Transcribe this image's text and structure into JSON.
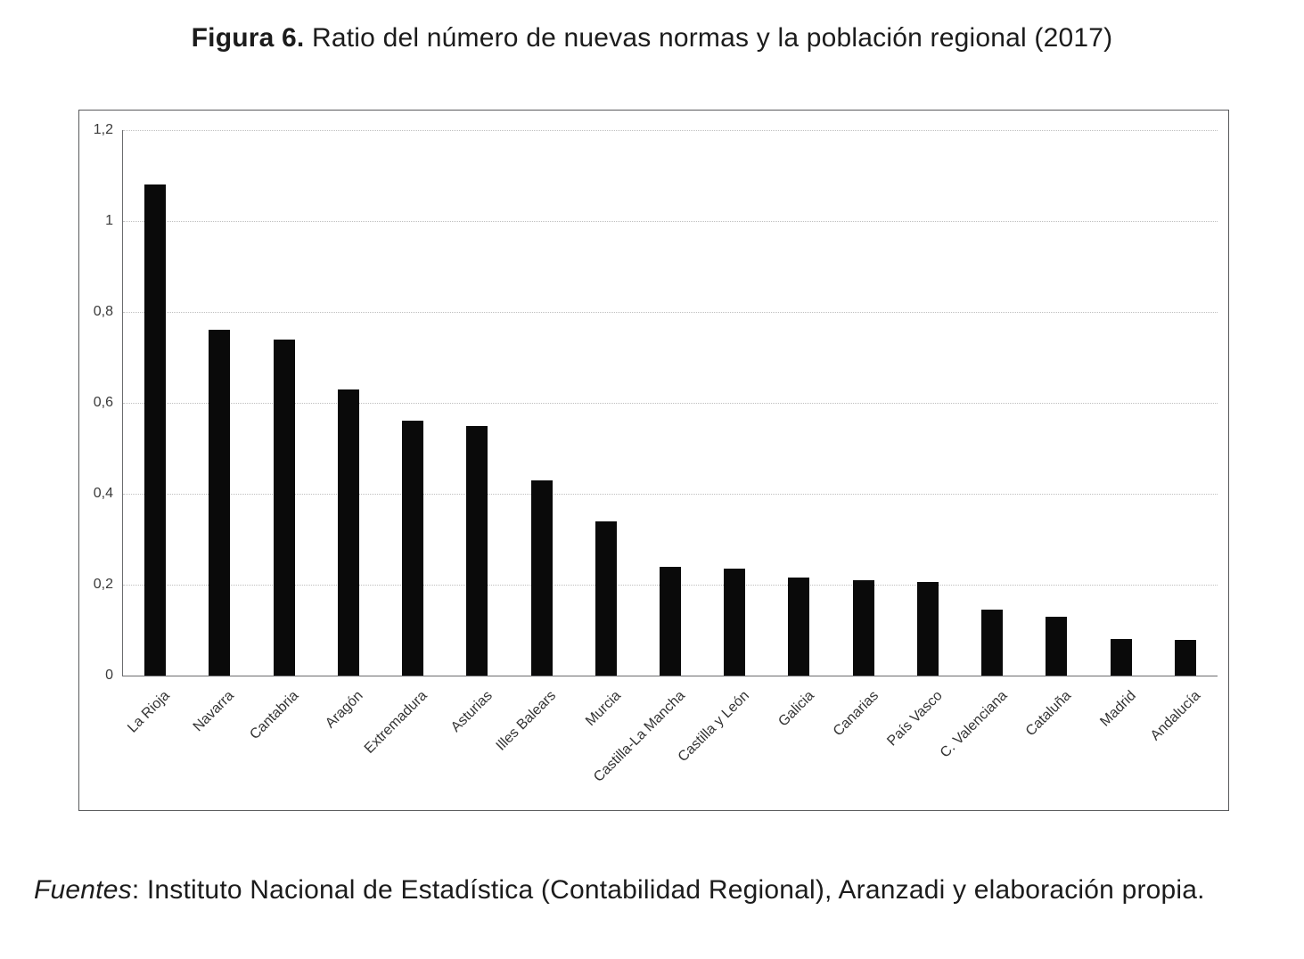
{
  "figure_title": {
    "bold": "Figura 6.",
    "regular": " Ratio del número de nuevas normas y la población regional (2017)"
  },
  "source_note": {
    "label": "Fuentes",
    "text": ": Instituto Nacional de Estadística (Contabilidad Regional), Aranzadi y elaboración propia."
  },
  "chart_data": {
    "type": "bar",
    "title": "Ratio del número de nuevas normas y la población regional (2017)",
    "categories": [
      "La Rioja",
      "Navarra",
      "Cantabria",
      "Aragón",
      "Extremadura",
      "Asturias",
      "Illes Balears",
      "Murcia",
      "Castilla-La Mancha",
      "Castilla y León",
      "Galicia",
      "Canarias",
      "País Vasco",
      "C. Valenciana",
      "Cataluña",
      "Madrid",
      "Andalucía"
    ],
    "values": [
      1.08,
      0.76,
      0.74,
      0.63,
      0.56,
      0.55,
      0.43,
      0.34,
      0.24,
      0.235,
      0.215,
      0.21,
      0.205,
      0.145,
      0.13,
      0.08,
      0.078
    ],
    "xlabel": "",
    "ylabel": "",
    "ylim": [
      0,
      1.2
    ],
    "yticks": [
      0,
      0.2,
      0.4,
      0.6,
      0.8,
      1,
      1.2
    ],
    "ytick_labels": [
      "0",
      "0,2",
      "0,4",
      "0,6",
      "0,8",
      "1",
      "1,2"
    ],
    "bar_color": "#0a0a0a",
    "grid": true,
    "grid_style": "dotted",
    "legend": false,
    "xtick_rotation": 45
  }
}
